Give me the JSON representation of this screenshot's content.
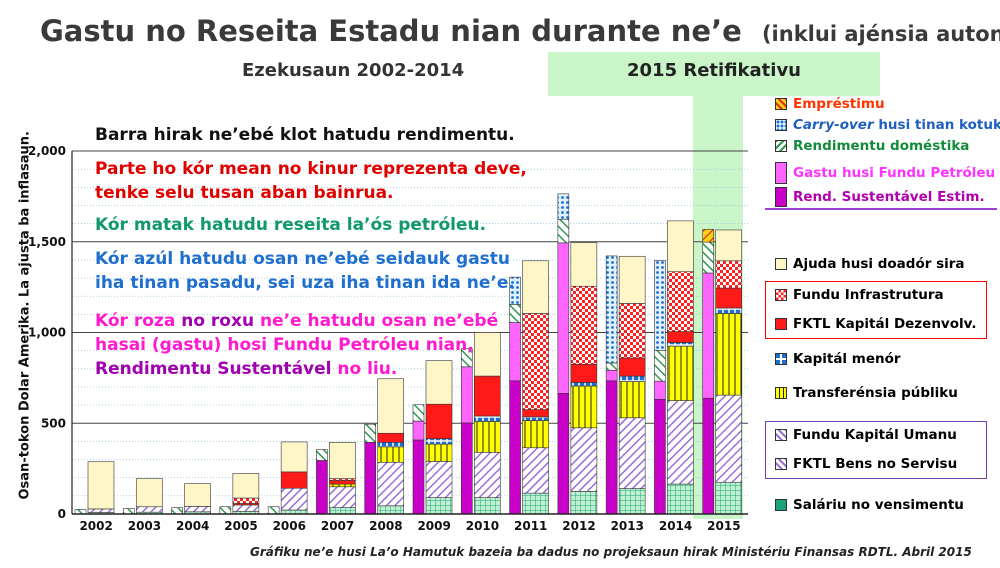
{
  "title": "Gastu no Reseita Estadu nian durante ne’e",
  "title_suffix": "(inklui ajénsia auton.)",
  "subtitle": "Ezekusaun 2002-2014",
  "highlight_label": "2015 Retifikativu",
  "footnote": "Gráfiku ne’e husi La’o Hamutuk bazeia ba dadus no projeksaun hirak Ministériu Finansas RDTL. Abril 2015",
  "annotations": {
    "a1": "Barra hirak ne’ebé klot hatudu rendimentu.",
    "a2_l1": "Parte ho kór mean no kinur reprezenta deve,",
    "a2_l2": "tenke selu tusan aban bainrua.",
    "a3": "Kór matak hatudu reseita la’ós petróleu.",
    "a4_l1": "Kór azúl hatudu osan ne’ebé seidauk gastu",
    "a4_l2": "iha tinan pasadu, sei uza iha tinan ida ne’e.",
    "a5_l1a": "Kór roza",
    "a5_l1b": " no roxu ",
    "a5_l1c": "ne’e hatudu osan ne’ebé",
    "a5_l2": "hasai (gastu) hosi Fundu Petróleu nian,",
    "a5_l3a": "Rendimentu Sustentável",
    "a5_l3b": " no liu."
  },
  "colors": {
    "bg_green": "#c9f5c9",
    "red": "#ff0000",
    "red_hatch": "#ff0000",
    "yellow": "#ffff00",
    "cream": "#fff6c8",
    "purple": "#c800c8",
    "pink": "#ff66ff",
    "lavender": "#b48ce6",
    "navy_blue": "#1f6fcf",
    "green": "#2e9b4e",
    "teal": "#1aa37a"
  },
  "legend": [
    {
      "label": "Empréstimu",
      "swatch": "loan",
      "color": "#ff3300"
    },
    {
      "label_a": "Carry-over",
      "label_b": " husi tinan kotuk",
      "swatch": "carry",
      "color": "#1f5fbf"
    },
    {
      "label": "Rendimentu doméstika",
      "swatch": "domestic",
      "color": "#138a3c"
    },
    {
      "label": "Gastu husi Fundu Petróleu",
      "swatch": "pf",
      "color": "#ff33ff"
    },
    {
      "label": "Rend. Sustentável Estim.",
      "swatch": "esi",
      "color": "#b000b0"
    },
    {
      "label": "Ajuda husi doadór sira",
      "swatch": "donor",
      "color": "#000000"
    },
    {
      "label": "Fundu Infrastrutura",
      "swatch": "inf",
      "color": "#000000"
    },
    {
      "label": "FKTL Kapitál Dezenvolv.",
      "swatch": "fktl_cap",
      "color": "#000000"
    },
    {
      "label": "Kapitál menór",
      "swatch": "minor",
      "color": "#000000"
    },
    {
      "label": "Transferénsia públiku",
      "swatch": "transfer",
      "color": "#000000"
    },
    {
      "label": "Fundu Kapitál Umanu",
      "swatch": "hcf",
      "color": "#000000"
    },
    {
      "label": "FKTL Bens no Servisu",
      "swatch": "gs",
      "color": "#000000"
    },
    {
      "label": "Saláriu no vensimentu",
      "swatch": "salary",
      "color": "#000000"
    }
  ],
  "chart_data": {
    "type": "bar",
    "title": "Gastu no Reseita Estadu nian durante ne’e",
    "ylabel": "Osan-tokon Dolar Amerika.   La ajusta ba inflasaun.",
    "xlabel": "",
    "ylim": [
      0,
      2000
    ],
    "yticks": [
      0,
      500,
      1000,
      1500,
      2000
    ],
    "ytick_labels": [
      "0",
      "500",
      "1,000",
      "1,500",
      "2,000"
    ],
    "categories": [
      "2002",
      "2003",
      "2004",
      "2005",
      "2006",
      "2007",
      "2008",
      "2009",
      "2010",
      "2011",
      "2012",
      "2013",
      "2014",
      "2015"
    ],
    "revenue_series": [
      {
        "name": "Rend. Sustentável Estim.",
        "key": "esi",
        "values": [
          0,
          0,
          0,
          0,
          0,
          295,
          395,
          408,
          502,
          734,
          665,
          734,
          632,
          638
        ]
      },
      {
        "name": "Gastu husi Fundu Petróleu",
        "key": "pf",
        "values": [
          0,
          0,
          0,
          0,
          0,
          0,
          0,
          104,
          309,
          321,
          829,
          58,
          100,
          690
        ]
      },
      {
        "name": "Rendimentu doméstika",
        "key": "domestic",
        "values": [
          25,
          30,
          35,
          40,
          40,
          60,
          100,
          90,
          100,
          100,
          130,
          40,
          170,
          170
        ]
      },
      {
        "name": "Carry-over husi tinan kotuk",
        "key": "carry",
        "values": [
          0,
          0,
          0,
          0,
          0,
          0,
          0,
          0,
          0,
          150,
          140,
          590,
          495,
          0
        ]
      },
      {
        "name": "Empréstimu",
        "key": "loan",
        "values": [
          0,
          0,
          0,
          0,
          0,
          0,
          0,
          0,
          0,
          0,
          0,
          0,
          0,
          70
        ]
      }
    ],
    "expense_series": [
      {
        "name": "Saláriu no vensimentu",
        "key": "salary",
        "values": [
          8,
          10,
          12,
          15,
          22,
          35,
          45,
          90,
          90,
          115,
          125,
          140,
          165,
          175
        ]
      },
      {
        "name": "FKTL Bens no Servisu",
        "key": "gs",
        "values": [
          20,
          30,
          30,
          35,
          120,
          115,
          240,
          200,
          250,
          250,
          350,
          390,
          460,
          480
        ]
      },
      {
        "name": "Fundu Kapitál Umanu",
        "key": "hcf",
        "values": [
          0,
          0,
          0,
          0,
          0,
          0,
          0,
          0,
          0,
          0,
          0,
          0,
          0,
          0
        ]
      },
      {
        "name": "Transferénsia públiku",
        "key": "transfer",
        "values": [
          0,
          0,
          0,
          0,
          0,
          15,
          85,
          95,
          170,
          150,
          230,
          200,
          300,
          450
        ]
      },
      {
        "name": "Kapitál menór",
        "key": "minor",
        "values": [
          0,
          0,
          0,
          0,
          0,
          0,
          25,
          30,
          30,
          20,
          20,
          30,
          20,
          30
        ]
      },
      {
        "name": "FKTL Kapitál Dezenvolv.",
        "key": "fktl_cap",
        "values": [
          0,
          0,
          0,
          8,
          90,
          20,
          50,
          190,
          220,
          40,
          100,
          100,
          60,
          110
        ]
      },
      {
        "name": "Fundu Infrastrutura",
        "key": "inf",
        "values": [
          0,
          0,
          0,
          30,
          0,
          10,
          0,
          0,
          0,
          530,
          430,
          300,
          330,
          150
        ]
      },
      {
        "name": "Ajuda husi doadór sira",
        "key": "donor",
        "values": [
          260,
          155,
          125,
          135,
          165,
          200,
          300,
          240,
          240,
          290,
          240,
          260,
          280,
          170
        ]
      }
    ]
  }
}
